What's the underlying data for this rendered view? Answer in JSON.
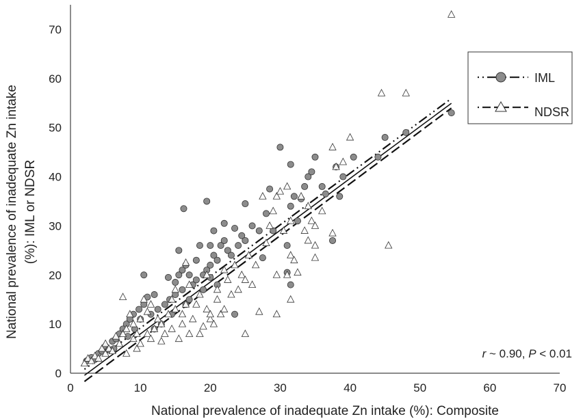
{
  "chart_data": {
    "type": "scatter",
    "xlabel": "National prevalence of inadequate Zn intake (%): Composite",
    "ylabel_line1": "National prevalence of inadequate  Zn intake",
    "ylabel_line2": "(%): IML or NDSR",
    "xlim": [
      0,
      70
    ],
    "ylim": [
      0,
      75
    ],
    "xticks": [
      0,
      10,
      20,
      30,
      40,
      50,
      60,
      70
    ],
    "yticks": [
      0,
      10,
      20,
      30,
      40,
      50,
      60,
      70
    ],
    "grid": false,
    "legend_position": "top-right",
    "annotation": {
      "r_symbol": "r",
      "r_text": " ~ 0.90, ",
      "p_symbol": "P",
      "p_text": " < 0.01"
    },
    "colors": {
      "iml_fill": "#8c8c8c",
      "ndsr_fill": "#ffffff",
      "stroke": "#222222"
    },
    "series": [
      {
        "name": "IML",
        "marker": "circle",
        "fit": {
          "slope": 1.05,
          "intercept": -1.3,
          "x_range": [
            2,
            54.5
          ],
          "dash": "dashdotdot"
        },
        "points": [
          [
            2.3,
            2.5
          ],
          [
            3,
            3.2
          ],
          [
            3.5,
            2.8
          ],
          [
            4,
            4
          ],
          [
            4.5,
            4.5
          ],
          [
            5,
            5.5
          ],
          [
            5.5,
            4.8
          ],
          [
            6,
            6.5
          ],
          [
            6.5,
            7
          ],
          [
            6.2,
            5
          ],
          [
            7,
            8
          ],
          [
            7.5,
            9
          ],
          [
            8,
            10
          ],
          [
            8.2,
            7.5
          ],
          [
            8.5,
            11
          ],
          [
            9,
            12
          ],
          [
            9.2,
            9
          ],
          [
            9.8,
            13
          ],
          [
            10,
            11
          ],
          [
            10.5,
            20
          ],
          [
            10.5,
            14
          ],
          [
            11,
            15.5
          ],
          [
            11.5,
            12
          ],
          [
            12,
            16
          ],
          [
            12,
            9
          ],
          [
            12.5,
            13
          ],
          [
            13,
            10
          ],
          [
            13.5,
            14
          ],
          [
            14,
            19.5
          ],
          [
            14.2,
            15
          ],
          [
            14.5,
            12
          ],
          [
            15,
            16
          ],
          [
            15,
            18.5
          ],
          [
            15.5,
            20
          ],
          [
            15.5,
            25
          ],
          [
            16,
            17
          ],
          [
            16,
            21
          ],
          [
            16.2,
            33.5
          ],
          [
            16.5,
            14
          ],
          [
            16.5,
            22
          ],
          [
            17,
            15
          ],
          [
            17,
            20
          ],
          [
            17.5,
            18
          ],
          [
            18,
            19
          ],
          [
            18,
            23
          ],
          [
            18.5,
            26
          ],
          [
            19,
            17
          ],
          [
            19,
            20
          ],
          [
            19.5,
            35
          ],
          [
            19.5,
            21
          ],
          [
            20,
            22
          ],
          [
            20,
            26
          ],
          [
            20,
            19.5
          ],
          [
            20.5,
            24
          ],
          [
            20.5,
            29
          ],
          [
            21,
            23
          ],
          [
            21,
            18
          ],
          [
            21.5,
            26
          ],
          [
            22,
            30.5
          ],
          [
            22,
            27
          ],
          [
            22.5,
            25
          ],
          [
            23,
            24
          ],
          [
            23.5,
            29.5
          ],
          [
            23.5,
            12
          ],
          [
            24,
            26
          ],
          [
            24.5,
            28
          ],
          [
            25,
            34.5
          ],
          [
            25,
            27
          ],
          [
            26,
            30
          ],
          [
            27,
            29
          ],
          [
            27.5,
            23.5
          ],
          [
            28,
            32.5
          ],
          [
            28.5,
            37.5
          ],
          [
            29,
            29
          ],
          [
            30,
            46
          ],
          [
            31,
            20.5
          ],
          [
            31,
            26
          ],
          [
            31.5,
            42.5
          ],
          [
            31.5,
            34
          ],
          [
            31.5,
            18
          ],
          [
            32,
            36
          ],
          [
            32.5,
            31
          ],
          [
            33,
            35.5
          ],
          [
            33.5,
            38
          ],
          [
            34,
            40
          ],
          [
            34.5,
            41
          ],
          [
            35,
            44
          ],
          [
            36,
            38
          ],
          [
            36.5,
            36.5
          ],
          [
            37.5,
            27
          ],
          [
            38,
            42
          ],
          [
            38.5,
            36
          ],
          [
            39,
            40
          ],
          [
            40.5,
            44
          ],
          [
            44,
            44
          ],
          [
            45,
            48
          ],
          [
            48,
            49
          ],
          [
            54.5,
            53
          ]
        ]
      },
      {
        "name": "NDSR",
        "marker": "triangle",
        "fit": {
          "slope": 1.06,
          "intercept": -3.8,
          "x_range": [
            2,
            54.5
          ],
          "dash": "longdash"
        },
        "points": [
          [
            2,
            2
          ],
          [
            2.5,
            3
          ],
          [
            3,
            2.5
          ],
          [
            3.5,
            3.5
          ],
          [
            4,
            3
          ],
          [
            4.5,
            5
          ],
          [
            5,
            4
          ],
          [
            5,
            6
          ],
          [
            5.5,
            5
          ],
          [
            6,
            4.5
          ],
          [
            6.5,
            7.5
          ],
          [
            7,
            6
          ],
          [
            7.5,
            15.5
          ],
          [
            7.5,
            8
          ],
          [
            8,
            4
          ],
          [
            8,
            9
          ],
          [
            8.5,
            12
          ],
          [
            9,
            7
          ],
          [
            9,
            10
          ],
          [
            9.5,
            8
          ],
          [
            9.5,
            5
          ],
          [
            10,
            11
          ],
          [
            10,
            6
          ],
          [
            10.5,
            15
          ],
          [
            11,
            8
          ],
          [
            11,
            12.5
          ],
          [
            11.5,
            14
          ],
          [
            11.5,
            7
          ],
          [
            12,
            9
          ],
          [
            12.5,
            11
          ],
          [
            13,
            6.5
          ],
          [
            13,
            10
          ],
          [
            13.5,
            8
          ],
          [
            14,
            12
          ],
          [
            14.5,
            15
          ],
          [
            14.5,
            9
          ],
          [
            15,
            13
          ],
          [
            15,
            17
          ],
          [
            15.5,
            7
          ],
          [
            16,
            10
          ],
          [
            16,
            12
          ],
          [
            16.5,
            14
          ],
          [
            16.5,
            22.5
          ],
          [
            17,
            18
          ],
          [
            17,
            8
          ],
          [
            17.5,
            11
          ],
          [
            18,
            14
          ],
          [
            18.5,
            16
          ],
          [
            18.5,
            8
          ],
          [
            19,
            9.5
          ],
          [
            19.5,
            13
          ],
          [
            19.5,
            20
          ],
          [
            20,
            11
          ],
          [
            20,
            12
          ],
          [
            20.5,
            10
          ],
          [
            21,
            15
          ],
          [
            21,
            17
          ],
          [
            21.5,
            12
          ],
          [
            22,
            13
          ],
          [
            22,
            21
          ],
          [
            22.5,
            19
          ],
          [
            23,
            16
          ],
          [
            23.5,
            22
          ],
          [
            24,
            17
          ],
          [
            24.5,
            20
          ],
          [
            25,
            19
          ],
          [
            25,
            8
          ],
          [
            25.5,
            24
          ],
          [
            26,
            18
          ],
          [
            26.5,
            22
          ],
          [
            27,
            12.5
          ],
          [
            27.5,
            36
          ],
          [
            28,
            26.5
          ],
          [
            28.5,
            30
          ],
          [
            29,
            33
          ],
          [
            29.5,
            20
          ],
          [
            29.5,
            36
          ],
          [
            29.5,
            12
          ],
          [
            30,
            37
          ],
          [
            30.5,
            29
          ],
          [
            31,
            38
          ],
          [
            31,
            20
          ],
          [
            31.5,
            15
          ],
          [
            31.5,
            24
          ],
          [
            31.5,
            31
          ],
          [
            32,
            23
          ],
          [
            32.5,
            20.5
          ],
          [
            33,
            36
          ],
          [
            33.5,
            29
          ],
          [
            34,
            27
          ],
          [
            34,
            34
          ],
          [
            34.5,
            31
          ],
          [
            35,
            23.5
          ],
          [
            35,
            26
          ],
          [
            35,
            30
          ],
          [
            36,
            33
          ],
          [
            37.5,
            28.5
          ],
          [
            37.5,
            46
          ],
          [
            38,
            42
          ],
          [
            39,
            43
          ],
          [
            40,
            48
          ],
          [
            44.5,
            57
          ],
          [
            45.5,
            26
          ],
          [
            48,
            57
          ],
          [
            54.5,
            73
          ]
        ]
      }
    ]
  }
}
